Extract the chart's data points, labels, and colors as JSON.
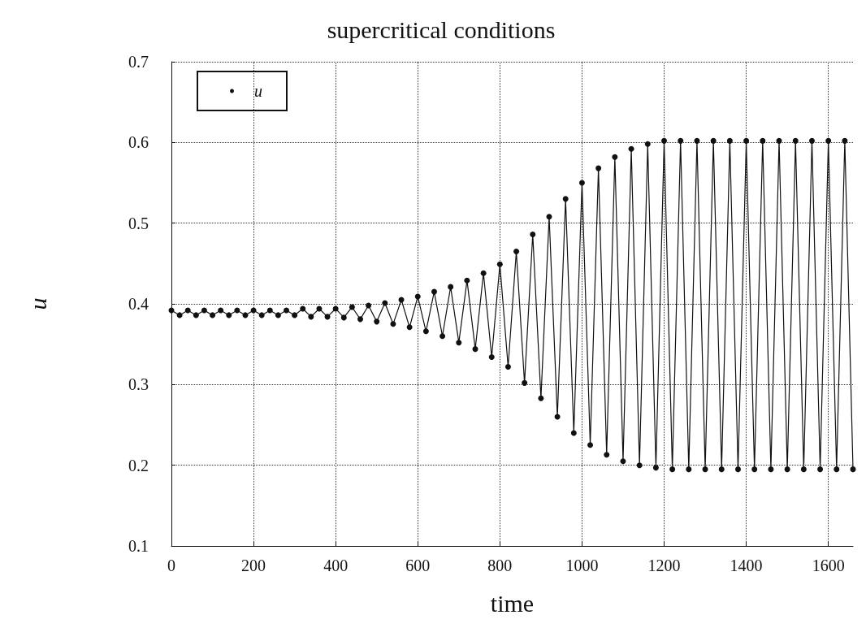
{
  "chart_data": {
    "type": "line",
    "title": "supercritical conditions",
    "xlabel": "time",
    "ylabel": "u",
    "xlim": [
      0,
      1660
    ],
    "xticks": [
      0,
      200,
      400,
      600,
      800,
      1000,
      1200,
      1400,
      1600
    ],
    "ylim": [
      0.1,
      0.7
    ],
    "yticks": [
      0.1,
      0.2,
      0.3,
      0.4,
      0.5,
      0.6,
      0.7
    ],
    "grid": true,
    "legend": "top left",
    "marker": "circle",
    "line_style": "solid",
    "series": [
      {
        "name": "u",
        "color": "#111111",
        "x": [
          0,
          20,
          40,
          60,
          80,
          100,
          120,
          140,
          160,
          180,
          200,
          220,
          240,
          260,
          280,
          300,
          320,
          340,
          360,
          380,
          400,
          420,
          440,
          460,
          480,
          500,
          520,
          540,
          560,
          580,
          600,
          620,
          640,
          660,
          680,
          700,
          720,
          740,
          760,
          780,
          800,
          820,
          840,
          860,
          880,
          900,
          920,
          940,
          960,
          980,
          1000,
          1020,
          1040,
          1060,
          1080,
          1100,
          1120,
          1140,
          1160,
          1180,
          1200,
          1220,
          1240,
          1260,
          1280,
          1300,
          1320,
          1340,
          1360,
          1380,
          1400,
          1420,
          1440,
          1460,
          1480,
          1500,
          1520,
          1540,
          1560,
          1580,
          1600,
          1620,
          1640,
          1660
        ],
        "values": [
          0.392,
          0.386,
          0.392,
          0.386,
          0.392,
          0.386,
          0.392,
          0.386,
          0.392,
          0.386,
          0.392,
          0.386,
          0.392,
          0.386,
          0.392,
          0.386,
          0.394,
          0.384,
          0.394,
          0.384,
          0.394,
          0.383,
          0.396,
          0.381,
          0.398,
          0.378,
          0.401,
          0.375,
          0.405,
          0.371,
          0.409,
          0.366,
          0.415,
          0.36,
          0.421,
          0.352,
          0.429,
          0.344,
          0.438,
          0.334,
          0.449,
          0.322,
          0.465,
          0.302,
          0.486,
          0.283,
          0.508,
          0.26,
          0.53,
          0.24,
          0.55,
          0.225,
          0.568,
          0.213,
          0.582,
          0.205,
          0.592,
          0.2,
          0.598,
          0.197,
          0.602,
          0.195,
          0.602,
          0.195,
          0.602,
          0.195,
          0.602,
          0.195,
          0.602,
          0.195,
          0.602,
          0.195,
          0.602,
          0.195,
          0.602,
          0.195,
          0.602,
          0.195,
          0.602,
          0.195,
          0.602,
          0.195,
          0.602,
          0.195
        ]
      }
    ]
  }
}
